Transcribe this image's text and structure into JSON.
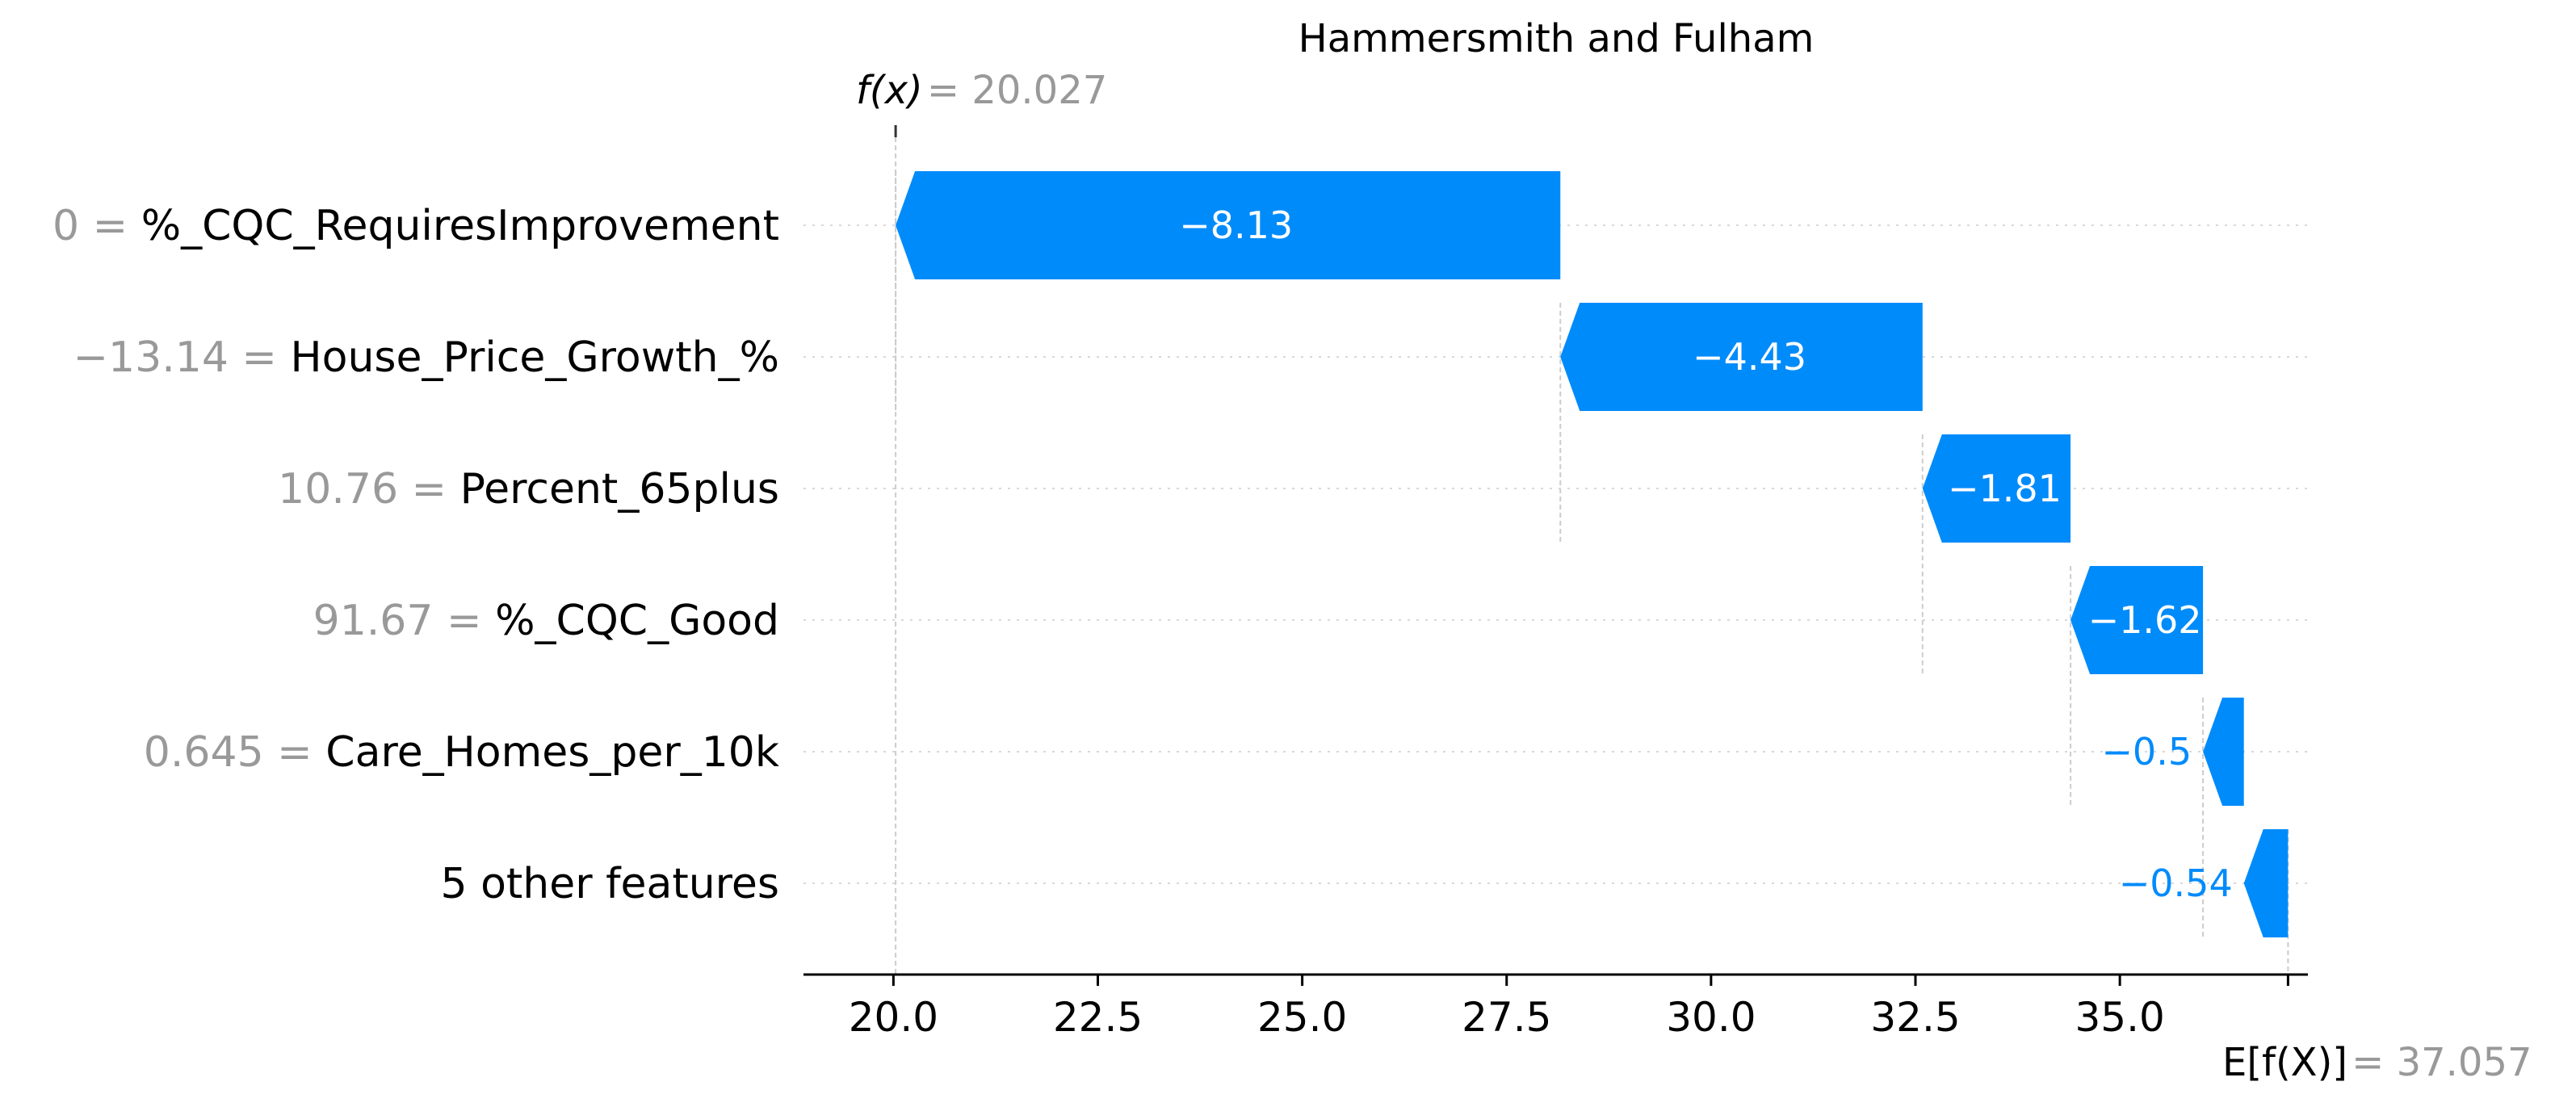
{
  "chart_data": {
    "type": "waterfall",
    "title": "Hammersmith and Fulham",
    "fx_label": "f(x)",
    "fx_value": "20.027",
    "efx_label": "E[f(X)]",
    "efx_value": "37.057",
    "base_value": 37.057,
    "output_value": 20.027,
    "xlim": [
      18.9,
      37.3
    ],
    "xticks": [
      "20.0",
      "22.5",
      "25.0",
      "27.5",
      "30.0",
      "32.5",
      "35.0"
    ],
    "features": [
      {
        "value": "0",
        "name": "%_CQC_RequiresImprovement",
        "shap": -8.13,
        "label": "−8.13",
        "start": 28.157,
        "end": 20.027
      },
      {
        "value": "−13.14",
        "name": "House_Price_Growth_%",
        "shap": -4.43,
        "label": "−4.43",
        "start": 32.587,
        "end": 28.157
      },
      {
        "value": "10.76",
        "name": "Percent_65plus",
        "shap": -1.81,
        "label": "−1.81",
        "start": 34.397,
        "end": 32.587
      },
      {
        "value": "91.67",
        "name": "%_CQC_Good",
        "shap": -1.62,
        "label": "−1.62",
        "start": 36.017,
        "end": 34.397
      },
      {
        "value": "0.645",
        "name": "Care_Homes_per_10k",
        "shap": -0.5,
        "label": "−0.5",
        "start": 36.517,
        "end": 36.017
      },
      {
        "value": "",
        "name": "5 other features",
        "shap": -0.54,
        "label": "−0.54",
        "start": 37.057,
        "end": 36.517
      }
    ],
    "colors": {
      "negative": "#008bfb",
      "grid": "#cccccc",
      "muted": "#999999"
    },
    "grid": true
  }
}
